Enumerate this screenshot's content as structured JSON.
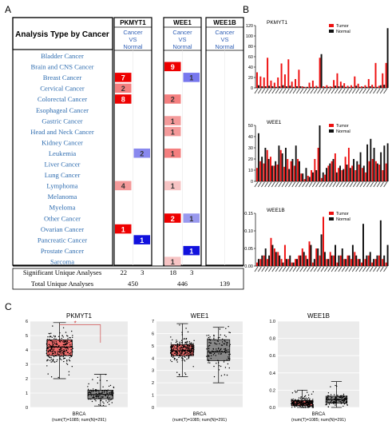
{
  "panel_labels": {
    "a": "A",
    "b": "B",
    "c": "C"
  },
  "oncomine": {
    "header": "Analysis Type by Cancer",
    "columns": [
      {
        "gene": "PKMYT1",
        "sub1": "Cancer",
        "sub2": "VS",
        "sub3": "Normal"
      },
      {
        "gene": "WEE1",
        "sub1": "Cancer",
        "sub2": "VS",
        "sub3": "Normal"
      },
      {
        "gene": "WEE1B",
        "sub1": "Cancer",
        "sub2": "VS",
        "sub3": "Normal"
      }
    ],
    "cancers": [
      "Bladder Cancer",
      "Brain and CNS Cancer",
      "Breast Cancer",
      "Cervical Cancer",
      "Colorectal Cancer",
      "Esophageal Cancer",
      "Gastric Cancer",
      "Head and Neck Cancer",
      "Kidney Cancer",
      "Leukemia",
      "Liver Cancer",
      "Lung Cancer",
      "Lymphoma",
      "Melanoma",
      "Myeloma",
      "Other Cancer",
      "Ovarian Cancer",
      "Pancreatic Cancer",
      "Prostate Cancer",
      "Sarcoma"
    ],
    "cells": [
      {
        "col": 0,
        "row": 2,
        "side": "up",
        "value": "7",
        "color": "#ee0000"
      },
      {
        "col": 0,
        "row": 3,
        "side": "up",
        "value": "2",
        "color": "#f47f7f"
      },
      {
        "col": 0,
        "row": 4,
        "side": "up",
        "value": "8",
        "color": "#ee0000"
      },
      {
        "col": 0,
        "row": 9,
        "side": "down",
        "value": "2",
        "color": "#8888ee"
      },
      {
        "col": 0,
        "row": 12,
        "side": "up",
        "value": "4",
        "color": "#f49a9a"
      },
      {
        "col": 0,
        "row": 16,
        "side": "up",
        "value": "1",
        "color": "#ee0000"
      },
      {
        "col": 0,
        "row": 17,
        "side": "down",
        "value": "1",
        "color": "#1111dd"
      },
      {
        "col": 1,
        "row": 1,
        "side": "up",
        "value": "9",
        "color": "#ee0000"
      },
      {
        "col": 1,
        "row": 2,
        "side": "down",
        "value": "1",
        "color": "#7777ee"
      },
      {
        "col": 1,
        "row": 4,
        "side": "up",
        "value": "2",
        "color": "#f47f7f"
      },
      {
        "col": 1,
        "row": 6,
        "side": "up",
        "value": "1",
        "color": "#f49a9a"
      },
      {
        "col": 1,
        "row": 7,
        "side": "up",
        "value": "1",
        "color": "#f49a9a"
      },
      {
        "col": 1,
        "row": 9,
        "side": "up",
        "value": "1",
        "color": "#f47f7f"
      },
      {
        "col": 1,
        "row": 12,
        "side": "up",
        "value": "1",
        "color": "#f7c4c4"
      },
      {
        "col": 1,
        "row": 15,
        "side": "up",
        "value": "2",
        "color": "#ee0000"
      },
      {
        "col": 1,
        "row": 15,
        "side": "down",
        "value": "1",
        "color": "#9999ee"
      },
      {
        "col": 1,
        "row": 18,
        "side": "down",
        "value": "1",
        "color": "#1111dd"
      },
      {
        "col": 1,
        "row": 19,
        "side": "up",
        "value": "1",
        "color": "#f7c4c4"
      }
    ],
    "sig_label": "Significant Unique Analyses",
    "total_label": "Total Unique Analyses",
    "sig": [
      [
        "22",
        "3"
      ],
      [
        "18",
        "3"
      ],
      [
        "",
        ""
      ]
    ],
    "total": [
      "450",
      "446",
      "139"
    ]
  },
  "colors": {
    "tumor": "#ee1111",
    "normal": "#111111",
    "box_tumor": "#ee6b6b",
    "box_normal": "#888888",
    "cancer_blue": "#2f6db0",
    "gene_blue": "#2f5fb5"
  },
  "chart_data": [
    {
      "type": "bar",
      "title": "PKMYT1",
      "ylim": [
        0,
        120
      ],
      "yticks": [
        "0",
        "20",
        "40",
        "60",
        "80",
        "100",
        "120"
      ],
      "series": [
        {
          "name": "Tumor",
          "values": [
            30,
            22,
            20,
            58,
            14,
            10,
            20,
            47,
            26,
            55,
            12,
            17,
            35,
            3,
            2,
            10,
            14,
            4,
            58,
            3,
            5,
            3,
            15,
            28,
            12,
            9,
            4,
            5,
            22,
            8,
            3,
            5,
            17,
            6,
            48,
            4,
            28,
            48
          ]
        },
        {
          "name": "Normal",
          "values": [
            5,
            3,
            3,
            4,
            3,
            2,
            3,
            5,
            3,
            4,
            2,
            3,
            3,
            2,
            2,
            2,
            2,
            2,
            65,
            2,
            2,
            2,
            4,
            3,
            4,
            2,
            2,
            2,
            4,
            2,
            2,
            2,
            3,
            2,
            2,
            5,
            6,
            115
          ]
        }
      ]
    },
    {
      "type": "bar",
      "title": "WEE1",
      "ylim": [
        0,
        50
      ],
      "yticks": [
        "0",
        "10",
        "20",
        "30",
        "40",
        "50"
      ],
      "series": [
        {
          "name": "Tumor",
          "values": [
            12,
            18,
            16,
            28,
            22,
            14,
            15,
            28,
            13,
            20,
            18,
            14,
            20,
            7,
            2,
            5,
            10,
            20,
            30,
            3,
            6,
            14,
            18,
            25,
            12,
            10,
            22,
            30,
            14,
            10,
            15,
            12,
            8,
            18,
            20,
            18,
            15,
            10,
            16
          ]
        },
        {
          "name": "Normal",
          "values": [
            43,
            22,
            30,
            20,
            14,
            18,
            32,
            25,
            30,
            11,
            20,
            32,
            18,
            7,
            12,
            4,
            8,
            10,
            50,
            8,
            12,
            16,
            20,
            8,
            14,
            11,
            15,
            12,
            20,
            18,
            26,
            14,
            33,
            38,
            30,
            16,
            26,
            32,
            34
          ]
        }
      ]
    },
    {
      "type": "bar",
      "title": "WEE1B",
      "ylim": [
        0,
        0.15
      ],
      "yticks": [
        "0.00",
        "0.05",
        "0.10",
        "0.15"
      ],
      "series": [
        {
          "name": "Tumor",
          "values": [
            0.01,
            0.02,
            0.03,
            0.02,
            0.08,
            0.05,
            0.04,
            0.02,
            0.06,
            0.02,
            0.01,
            0.02,
            0.03,
            0.05,
            0.03,
            0.07,
            0.01,
            0.05,
            0.03,
            0.14,
            0.02,
            0.04,
            0.03,
            0.01,
            0.03,
            0.02,
            0.03,
            0.02,
            0.04,
            0.02,
            0.01,
            0.02,
            0.03,
            0.01,
            0.02,
            0.03,
            0.02,
            0.01
          ]
        },
        {
          "name": "Normal",
          "values": [
            0.02,
            0.03,
            0.05,
            0.03,
            0.06,
            0.04,
            0.03,
            0.01,
            0.02,
            0.03,
            0.01,
            0.02,
            0.03,
            0.04,
            0.02,
            0.06,
            0.02,
            0.05,
            0.09,
            0.04,
            0.02,
            0.03,
            0.06,
            0.03,
            0.05,
            0.02,
            0.03,
            0.06,
            0.03,
            0.02,
            0.12,
            0.03,
            0.04,
            0.02,
            0.03,
            0.13,
            0.03,
            0.06
          ]
        }
      ]
    },
    {
      "type": "box",
      "title": "PKMYT1",
      "ylim": [
        0,
        6
      ],
      "yticks": [
        "0",
        "1",
        "2",
        "3",
        "4",
        "5",
        "6"
      ],
      "xlabel": "BRCA",
      "xlabel2": "(num(T)=1085; num(N)=291)",
      "boxes": [
        {
          "name": "Tumor",
          "q1": 3.6,
          "median": 4.2,
          "q3": 4.7,
          "wlo": 2.0,
          "whi": 5.9
        },
        {
          "name": "Normal",
          "q1": 0.6,
          "median": 0.9,
          "q3": 1.2,
          "wlo": 0.1,
          "whi": 2.3
        }
      ],
      "significance": "*"
    },
    {
      "type": "box",
      "title": "WEE1",
      "ylim": [
        0,
        7
      ],
      "yticks": [
        "0",
        "1",
        "2",
        "3",
        "4",
        "5",
        "6",
        "7"
      ],
      "xlabel": "BRCA",
      "xlabel2": "(num(T)=1085; num(N)=291)",
      "boxes": [
        {
          "name": "Tumor",
          "q1": 4.2,
          "median": 4.6,
          "q3": 5.1,
          "wlo": 2.5,
          "whi": 6.8
        },
        {
          "name": "Normal",
          "q1": 3.8,
          "median": 4.5,
          "q3": 5.5,
          "wlo": 2.0,
          "whi": 6.5
        }
      ]
    },
    {
      "type": "box",
      "title": "WEE1B",
      "ylim": [
        0,
        1.0
      ],
      "yticks": [
        "0.0",
        "0.2",
        "0.4",
        "0.6",
        "0.8",
        "1.0"
      ],
      "xlabel": "BRCA",
      "xlabel2": "(num(T)=1085; num(N)=291)",
      "boxes": [
        {
          "name": "Tumor",
          "q1": 0.02,
          "median": 0.05,
          "q3": 0.08,
          "wlo": 0.0,
          "whi": 0.2
        },
        {
          "name": "Normal",
          "q1": 0.05,
          "median": 0.09,
          "q3": 0.13,
          "wlo": 0.0,
          "whi": 0.3
        }
      ]
    }
  ]
}
